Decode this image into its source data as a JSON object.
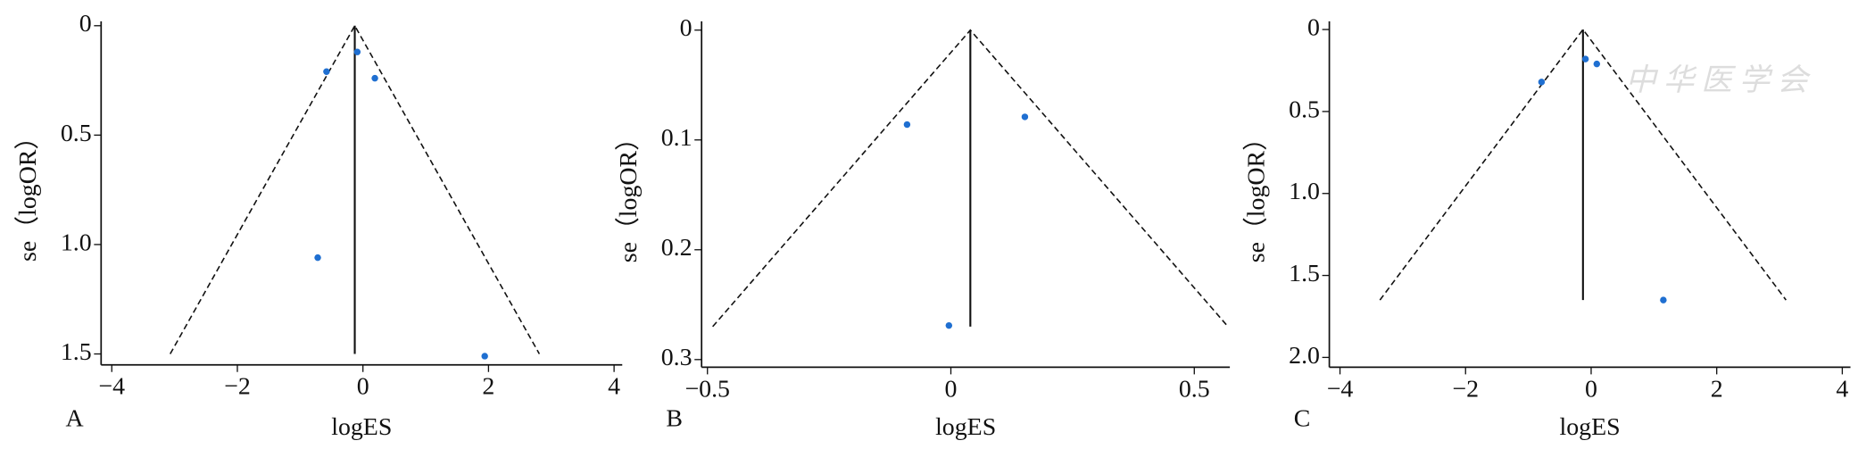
{
  "chart_data": [
    {
      "type": "funnel",
      "panel_label": "A",
      "xlabel": "logES",
      "ylabel": "se（logOR）",
      "x": [
        -0.09,
        -0.58,
        0.19,
        -0.72,
        1.94
      ],
      "y": [
        0.12,
        0.21,
        0.24,
        1.06,
        1.51
      ],
      "color": "#1f6fd1",
      "pooled_logES": -0.13,
      "funnel_se_max": 1.5,
      "xlim": [
        -4.17,
        4.13
      ],
      "ylim": [
        -0.02,
        1.55
      ],
      "xticks": [
        {
          "value": -4,
          "label": "−4"
        },
        {
          "value": -2,
          "label": "−2"
        },
        0,
        2,
        4
      ],
      "yticks": [
        0,
        0.5,
        {
          "value": 1,
          "label": "1.0"
        },
        1.5
      ]
    },
    {
      "type": "funnel",
      "panel_label": "B",
      "xlabel": "logES",
      "ylabel": "se（logOR）",
      "x": [
        -0.09,
        0.152,
        -0.004
      ],
      "y": [
        0.086,
        0.079,
        0.269
      ],
      "color": "#1f6fd1",
      "pooled_logES": 0.04,
      "funnel_se_max": 0.27,
      "xlim": [
        -0.512,
        0.573
      ],
      "ylim": [
        -0.008,
        0.307
      ],
      "xticks": [
        {
          "value": -0.5,
          "label": "−0.5"
        },
        0,
        0.5
      ],
      "yticks": [
        0,
        0.1,
        0.2,
        0.3
      ]
    },
    {
      "type": "funnel",
      "panel_label": "C",
      "xlabel": "logES",
      "ylabel": "se（logOR）",
      "x": [
        -0.09,
        0.09,
        -0.79,
        1.15
      ],
      "y": [
        0.18,
        0.21,
        0.32,
        1.65
      ],
      "color": "#1f6fd1",
      "pooled_logES": -0.13,
      "funnel_se_max": 1.65,
      "xlim": [
        -4.17,
        4.13
      ],
      "ylim": [
        -0.05,
        2.06
      ],
      "xticks": [
        {
          "value": -4,
          "label": "−4"
        },
        {
          "value": -2,
          "label": "−2"
        },
        0,
        2,
        4
      ],
      "yticks": [
        0,
        0.5,
        {
          "value": 1,
          "label": "1.0"
        },
        1.5,
        {
          "value": 2,
          "label": "2.0"
        }
      ],
      "watermark": "中华医学会"
    }
  ]
}
